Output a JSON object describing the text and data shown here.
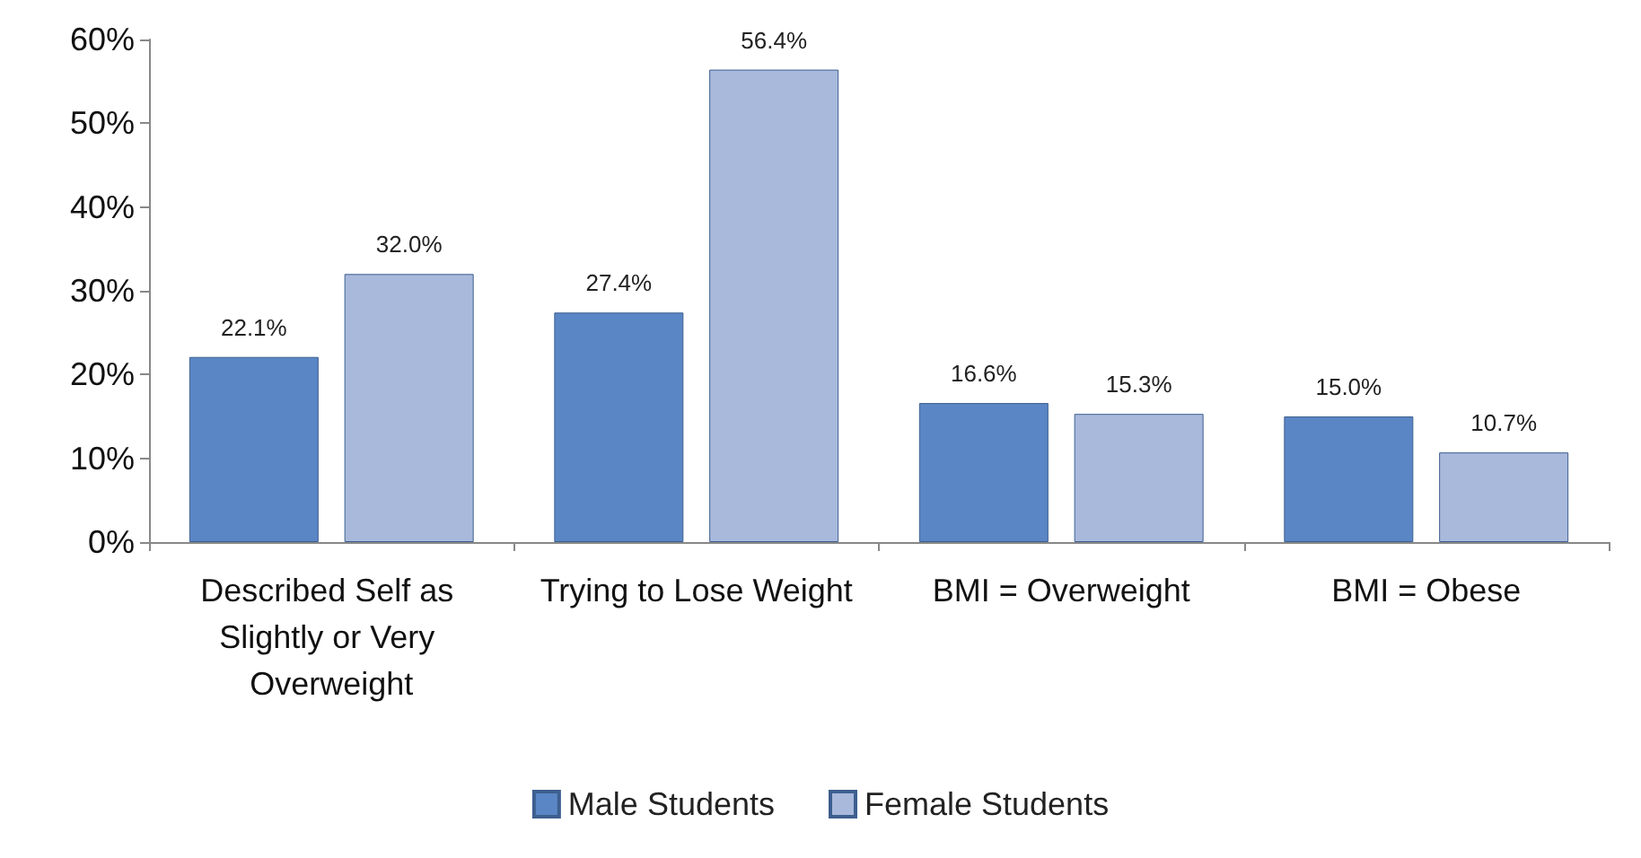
{
  "chart_data": {
    "type": "bar",
    "categories": [
      "Described Self as Slightly or Very Overweight",
      "Trying to Lose Weight",
      "BMI = Overweight",
      "BMI = Obese"
    ],
    "series": [
      {
        "name": "Male Students",
        "color": "#5a86c5",
        "values": [
          22.1,
          27.4,
          16.6,
          15.0
        ],
        "value_labels": [
          "22.1%",
          "27.4%",
          "16.6%",
          "15.0%"
        ]
      },
      {
        "name": "Female Students",
        "color": "#a9b9dc",
        "values": [
          32.0,
          56.4,
          15.3,
          10.7
        ],
        "value_labels": [
          "32.0%",
          "56.4%",
          "15.3%",
          "10.7%"
        ]
      }
    ],
    "ylim": [
      0,
      60
    ],
    "yticks": [
      {
        "value": 0,
        "label": "0%"
      },
      {
        "value": 10,
        "label": "10%"
      },
      {
        "value": 20,
        "label": "20%"
      },
      {
        "value": 30,
        "label": "30%"
      },
      {
        "value": 40,
        "label": "40%"
      },
      {
        "value": 50,
        "label": "50%"
      },
      {
        "value": 60,
        "label": "60%"
      }
    ],
    "grid": false,
    "legend": "bottom"
  }
}
